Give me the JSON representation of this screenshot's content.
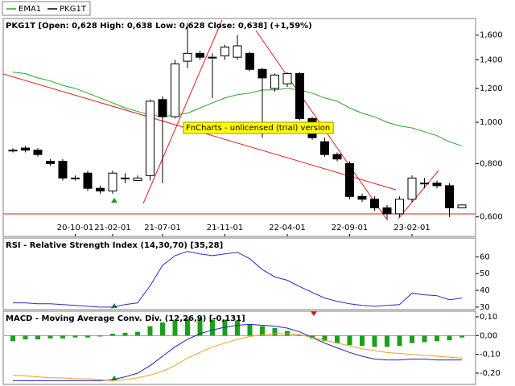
{
  "chart_data": [
    {
      "type": "candlestick",
      "title": "PKG1T [Open: 0,628  High: 0,638  Low: 0,628  Close: 0,638] (+1,59%)",
      "annotation": "FnCharts - unlicensed (trial) version",
      "legend": "top-left",
      "log_scale": true,
      "grid": false,
      "categories": [
        null,
        null,
        null,
        null,
        null,
        "20-10-01",
        null,
        null,
        "21-02-01",
        null,
        null,
        null,
        "21-07-01",
        null,
        null,
        null,
        null,
        "21-11-01",
        null,
        null,
        null,
        null,
        "22-04-01",
        null,
        null,
        null,
        null,
        "22-09-01",
        null,
        null,
        null,
        null,
        "23-02-01",
        null,
        null,
        null,
        null
      ],
      "series": [
        {
          "name": "EMA1",
          "type": "line",
          "color": "#22aa22",
          "values": [
            1.31,
            1.3,
            1.27,
            1.25,
            1.22,
            1.2,
            1.17,
            1.14,
            1.11,
            1.08,
            1.06,
            1.04,
            1.03,
            1.04,
            1.05,
            1.08,
            1.11,
            1.14,
            1.16,
            1.17,
            1.19,
            1.19,
            1.2,
            1.19,
            1.17,
            1.14,
            1.12,
            1.08,
            1.05,
            1.03,
            1.0,
            0.98,
            0.97,
            0.95,
            0.93,
            0.9,
            0.88
          ]
        },
        {
          "name": "PKG1T",
          "type": "candlestick",
          "color": "#000000",
          "open": [
            0.86,
            0.87,
            0.86,
            0.81,
            0.81,
            0.74,
            0.76,
            0.7,
            0.69,
            0.74,
            0.73,
            0.75,
            1.13,
            1.03,
            1.39,
            1.45,
            1.42,
            1.43,
            1.42,
            1.45,
            1.33,
            1.2,
            1.23,
            1.3,
            1.02,
            0.9,
            0.84,
            0.8,
            0.67,
            0.66,
            0.63,
            0.61,
            0.66,
            0.72,
            0.72,
            0.71,
            0.63
          ],
          "high": [
            0.87,
            0.88,
            0.87,
            0.82,
            0.82,
            0.75,
            0.77,
            0.71,
            0.77,
            0.76,
            0.75,
            1.13,
            1.15,
            1.4,
            1.71,
            1.47,
            1.45,
            1.52,
            1.6,
            1.46,
            1.34,
            1.3,
            1.31,
            1.31,
            1.03,
            0.92,
            0.85,
            0.81,
            0.68,
            0.67,
            0.64,
            0.67,
            0.75,
            0.74,
            0.73,
            0.72,
            0.64
          ],
          "low": [
            0.85,
            0.85,
            0.83,
            0.79,
            0.73,
            0.73,
            0.69,
            0.68,
            0.68,
            0.72,
            0.73,
            0.73,
            0.72,
            1.02,
            1.34,
            1.4,
            1.14,
            1.4,
            1.4,
            1.32,
            0.92,
            1.18,
            1.21,
            1.01,
            0.91,
            0.83,
            0.81,
            0.66,
            0.65,
            0.62,
            0.59,
            0.6,
            0.65,
            0.7,
            0.7,
            0.6,
            0.63
          ],
          "close": [
            0.86,
            0.86,
            0.84,
            0.8,
            0.74,
            0.74,
            0.7,
            0.69,
            0.76,
            0.74,
            0.74,
            1.12,
            1.03,
            1.37,
            1.45,
            1.42,
            1.42,
            1.5,
            1.51,
            1.33,
            1.27,
            1.29,
            1.3,
            1.02,
            0.92,
            0.84,
            0.82,
            0.67,
            0.66,
            0.63,
            0.61,
            0.66,
            0.74,
            0.72,
            0.71,
            0.63,
            0.64
          ]
        }
      ],
      "ylim": [
        0.54,
        1.75
      ],
      "yticks": [
        {
          "value": 0.6,
          "label": "0,600"
        },
        {
          "value": 0.8,
          "label": "0,800"
        },
        {
          "value": 1.0,
          "label": "1,000"
        },
        {
          "value": 1.2,
          "label": "1,200"
        },
        {
          "value": 1.4,
          "label": "1,400"
        },
        {
          "value": 1.6,
          "label": "1,600"
        }
      ]
    },
    {
      "type": "line",
      "title": "RSI - Relative Strength Index (14,30,70) [35,28]",
      "series": [
        {
          "type": "line",
          "color": "#2b2bc8",
          "values": [
            32.5,
            32.5,
            32,
            32,
            31.5,
            31,
            30.5,
            30,
            30,
            31.5,
            32.5,
            42.7,
            54.9,
            60.7,
            63.2,
            61.7,
            60.7,
            61.7,
            62.7,
            58.8,
            52.4,
            48,
            46,
            42.2,
            38.8,
            35.4,
            33.4,
            32,
            31,
            30.5,
            31,
            31.5,
            38.3,
            37.3,
            36.8,
            34.4,
            35.4
          ]
        }
      ],
      "ylim": [
        28.5,
        71.2
      ],
      "yticks": [
        30,
        40,
        50,
        60
      ]
    },
    {
      "type": "bar",
      "title": "MACD - Moving Average Conv. Div. (12,26,9) [-0,131]",
      "series": [
        {
          "type": "bar",
          "color": "#1aa01a",
          "values": [
            -0.03,
            -0.02,
            -0.02,
            -0.015,
            -0.015,
            -0.01,
            -0.01,
            -0.005,
            0.01,
            0.015,
            0.02,
            0.05,
            0.07,
            0.08,
            0.09,
            0.09,
            0.085,
            0.085,
            0.08,
            0.06,
            0.05,
            0.04,
            0.025,
            0.005,
            -0.015,
            -0.03,
            -0.04,
            -0.05,
            -0.055,
            -0.06,
            -0.06,
            -0.055,
            -0.04,
            -0.035,
            -0.03,
            -0.025,
            -0.01
          ]
        },
        {
          "type": "line",
          "color": "#2020c0",
          "values": [
            -0.24,
            -0.24,
            -0.24,
            -0.24,
            -0.24,
            -0.24,
            -0.24,
            -0.24,
            -0.235,
            -0.22,
            -0.2,
            -0.16,
            -0.11,
            -0.06,
            -0.02,
            0.01,
            0.03,
            0.045,
            0.055,
            0.06,
            0.055,
            0.05,
            0.04,
            0.02,
            -0.01,
            -0.04,
            -0.065,
            -0.09,
            -0.11,
            -0.125,
            -0.13,
            -0.13,
            -0.125,
            -0.125,
            -0.13,
            -0.13,
            -0.13
          ]
        },
        {
          "type": "line",
          "color": "#f0a020",
          "values": [
            -0.21,
            -0.215,
            -0.22,
            -0.225,
            -0.225,
            -0.23,
            -0.23,
            -0.235,
            -0.24,
            -0.235,
            -0.225,
            -0.21,
            -0.19,
            -0.16,
            -0.12,
            -0.09,
            -0.06,
            -0.04,
            -0.02,
            -0.005,
            0.005,
            0.01,
            0.01,
            0.005,
            -0.01,
            -0.025,
            -0.04,
            -0.055,
            -0.07,
            -0.08,
            -0.09,
            -0.095,
            -0.1,
            -0.105,
            -0.11,
            -0.115,
            -0.12
          ]
        }
      ],
      "ylim": [
        -0.26,
        0.13
      ],
      "yticks": [
        {
          "value": 0.1,
          "label": "0,10"
        },
        {
          "value": 0,
          "label": "0,00"
        },
        {
          "value": -0.1,
          "label": "-0,10"
        },
        {
          "value": -0.2,
          "label": "-0,20"
        }
      ]
    }
  ]
}
